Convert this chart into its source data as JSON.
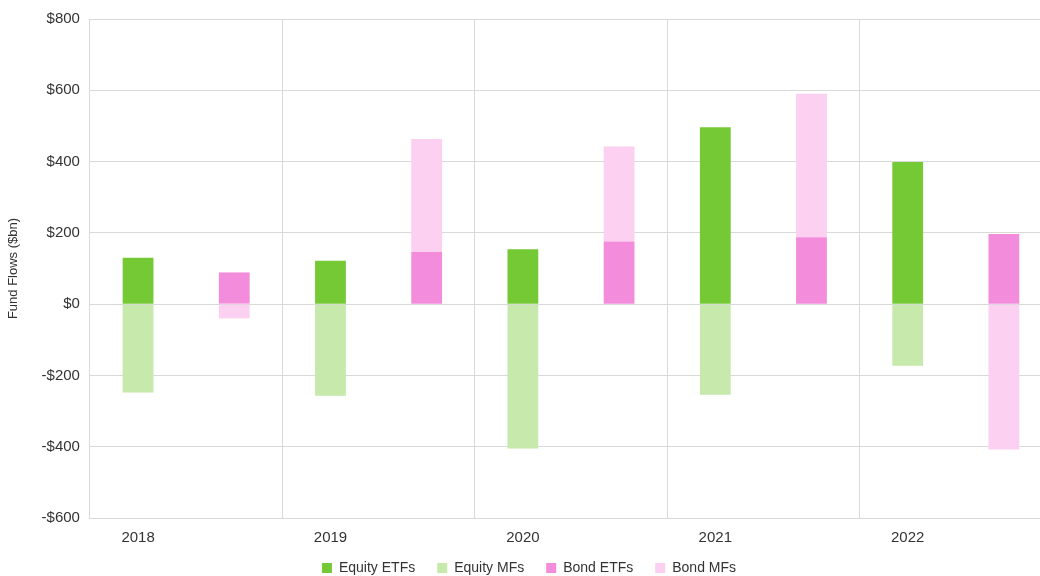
{
  "chart_data": {
    "type": "bar",
    "stacked": true,
    "ylabel": "Fund Flows ($bn)",
    "categories": [
      "2018",
      null,
      "2019",
      null,
      "2020",
      null,
      "2021",
      null,
      "2022",
      null
    ],
    "series": [
      {
        "name": "Equity ETFs",
        "color": "#74c935",
        "values": [
          130,
          null,
          122,
          null,
          154,
          null,
          496,
          null,
          399,
          null
        ]
      },
      {
        "name": "Equity MFs",
        "color": "#c7e9ac",
        "values": [
          -248,
          null,
          -257,
          null,
          -405,
          null,
          -254,
          null,
          -173,
          null
        ]
      },
      {
        "name": "Bond ETFs",
        "color": "#f48cdc",
        "values": [
          null,
          89,
          null,
          146,
          null,
          176,
          null,
          188,
          null,
          197
        ]
      },
      {
        "name": "Bond MFs",
        "color": "#fbd0f0",
        "values": [
          null,
          -40,
          null,
          317,
          null,
          266,
          null,
          402,
          null,
          -408
        ]
      }
    ],
    "ylim": [
      -600,
      800
    ],
    "yticks": [
      {
        "value": -600,
        "label": "-$600"
      },
      {
        "value": -400,
        "label": "-$400"
      },
      {
        "value": -200,
        "label": "-$200"
      },
      {
        "value": 0,
        "label": "$0"
      },
      {
        "value": 200,
        "label": "$200"
      },
      {
        "value": 400,
        "label": "$400"
      },
      {
        "value": 600,
        "label": "$600"
      },
      {
        "value": 800,
        "label": "$800"
      }
    ],
    "grid": true,
    "legend": "bottom"
  }
}
